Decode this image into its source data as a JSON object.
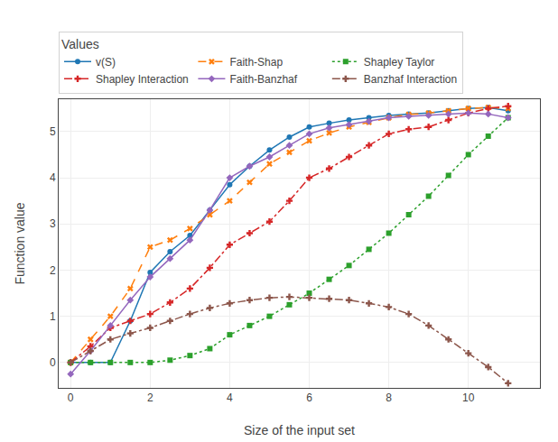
{
  "chart_data": {
    "type": "line",
    "title": "Values",
    "x_label": "Size of the input set",
    "y_label": "Function value",
    "x": [
      0,
      0.5,
      1,
      1.5,
      2,
      2.5,
      3,
      3.5,
      4,
      4.5,
      5,
      5.5,
      6,
      6.5,
      7,
      7.5,
      8,
      8.5,
      9,
      9.5,
      10,
      10.5,
      11
    ],
    "series": [
      {
        "name": "v(S)",
        "color": "#1f77b4",
        "line_style": "solid",
        "marker": "circle",
        "values": [
          0.0,
          0.0,
          0.0,
          0.9,
          1.95,
          2.4,
          2.75,
          3.3,
          3.85,
          4.25,
          4.6,
          4.88,
          5.1,
          5.18,
          5.25,
          5.3,
          5.35,
          5.38,
          5.4,
          5.45,
          5.5,
          5.52,
          5.45
        ]
      },
      {
        "name": "Faith-Shap",
        "color": "#ff7f0e",
        "line_style": "dashed",
        "marker": "x",
        "values": [
          0.0,
          0.5,
          1.0,
          1.6,
          2.5,
          2.65,
          2.9,
          3.2,
          3.5,
          3.9,
          4.3,
          4.55,
          4.8,
          4.97,
          5.1,
          5.2,
          5.3,
          5.37,
          5.4,
          5.45,
          5.5,
          5.52,
          5.5
        ]
      },
      {
        "name": "Shapley Taylor",
        "color": "#2ca02c",
        "line_style": "dotted",
        "marker": "square",
        "values": [
          0.0,
          0.0,
          0.0,
          0.0,
          0.0,
          0.05,
          0.15,
          0.3,
          0.6,
          0.8,
          1.0,
          1.25,
          1.5,
          1.8,
          2.1,
          2.45,
          2.8,
          3.2,
          3.6,
          4.05,
          4.5,
          4.9,
          5.3
        ]
      },
      {
        "name": "Shapley Interaction",
        "color": "#d62728",
        "line_style": "dashdot",
        "marker": "plus",
        "values": [
          0.0,
          0.35,
          0.75,
          0.9,
          1.05,
          1.3,
          1.6,
          2.05,
          2.55,
          2.8,
          3.05,
          3.5,
          4.0,
          4.2,
          4.45,
          4.7,
          4.95,
          5.05,
          5.1,
          5.25,
          5.4,
          5.5,
          5.55
        ]
      },
      {
        "name": "Faith-Banzhaf",
        "color": "#9467bd",
        "line_style": "solid",
        "marker": "diamond",
        "values": [
          -0.25,
          0.25,
          0.8,
          1.35,
          1.85,
          2.25,
          2.65,
          3.3,
          4.0,
          4.25,
          4.45,
          4.7,
          4.95,
          5.08,
          5.15,
          5.22,
          5.3,
          5.33,
          5.35,
          5.38,
          5.4,
          5.38,
          5.3
        ]
      },
      {
        "name": "Banzhaf Interaction",
        "color": "#8c564b",
        "line_style": "dashdot",
        "marker": "plus",
        "values": [
          0.0,
          0.25,
          0.5,
          0.63,
          0.75,
          0.9,
          1.05,
          1.18,
          1.28,
          1.35,
          1.4,
          1.42,
          1.4,
          1.38,
          1.35,
          1.28,
          1.2,
          1.05,
          0.8,
          0.5,
          0.2,
          -0.1,
          -0.45
        ]
      }
    ],
    "xlim": [
      -0.3,
      11.8
    ],
    "xticks": [
      0,
      2,
      4,
      6,
      8,
      10
    ],
    "ylim": [
      -0.55,
      5.7
    ],
    "yticks": [
      0,
      1,
      2,
      3,
      4,
      5
    ],
    "grid": true,
    "legend": "upper left"
  }
}
